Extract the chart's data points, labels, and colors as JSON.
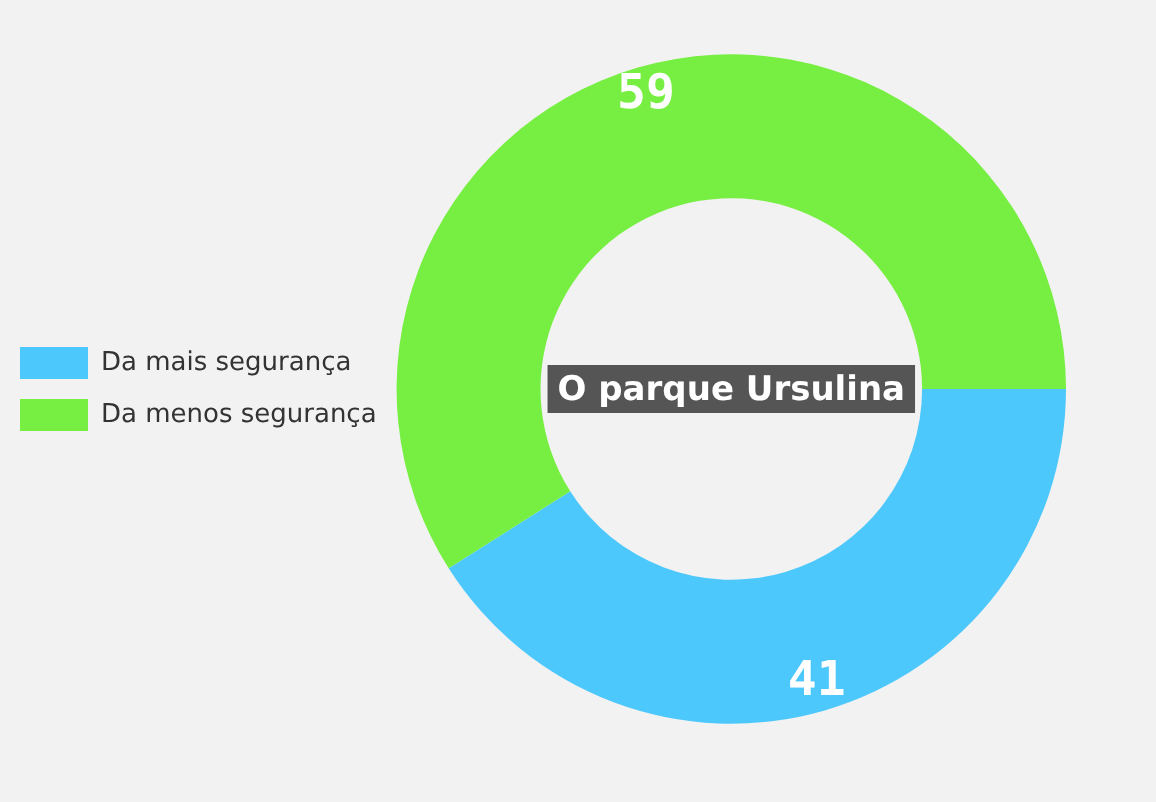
{
  "chart_data": {
    "type": "donut",
    "title": "O parque Ursulina",
    "categories": [
      "Da mais segurança",
      "Da menos segurança"
    ],
    "values": [
      41,
      59
    ],
    "colors": [
      "#4dc8fc",
      "#77ef42"
    ],
    "data_labels": true,
    "legend": "left"
  }
}
